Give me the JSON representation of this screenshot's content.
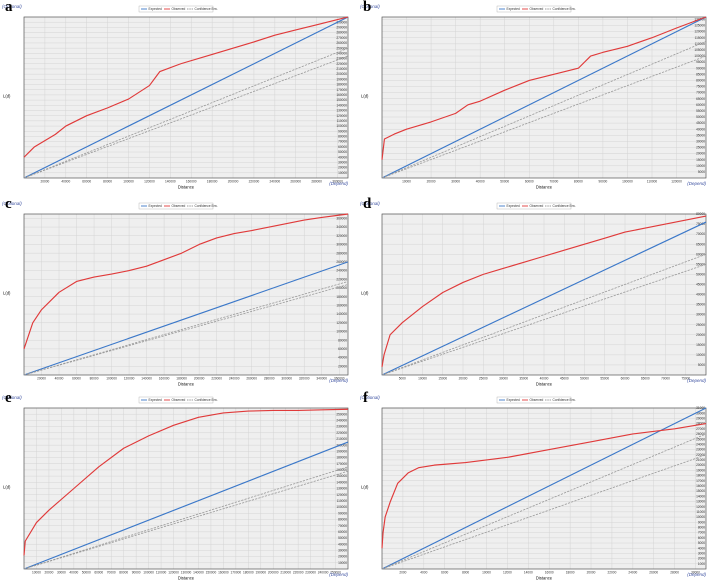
{
  "legend_labels": {
    "expected": "Expected",
    "observed": "Observed",
    "envelope": "Confidence Env."
  },
  "axis_labels": {
    "x": "Distance",
    "y": "L(d)"
  },
  "link_labels": {
    "optional": "(Optional)",
    "depend": "(Depend)"
  },
  "colors": {
    "expected": "#3b78c9",
    "observed": "#e03a3a",
    "envelope": "#999999",
    "plot_bg": "#efefef",
    "grid": "#d4d4d4"
  },
  "chart_data": [
    {
      "panel": "a",
      "type": "line",
      "grid": true,
      "legend_position": "top-center",
      "xlim": [
        0,
        310000
      ],
      "ylim": [
        0,
        310000
      ],
      "xticks": [
        20000,
        40000,
        60000,
        80000,
        100000,
        120000,
        140000,
        160000,
        180000,
        200000,
        220000,
        240000,
        260000,
        280000,
        300000
      ],
      "yticks": [
        10000,
        20000,
        30000,
        40000,
        50000,
        60000,
        70000,
        80000,
        90000,
        100000,
        110000,
        120000,
        130000,
        140000,
        150000,
        160000,
        170000,
        180000,
        190000,
        200000,
        210000,
        220000,
        230000,
        240000,
        250000,
        260000,
        270000,
        280000,
        290000,
        300000
      ],
      "series": [
        {
          "name": "Expected",
          "x": [
            0,
            310000
          ],
          "y": [
            0,
            310000
          ]
        },
        {
          "name": "Observed",
          "x": [
            0,
            10000,
            20000,
            30000,
            40000,
            60000,
            80000,
            100000,
            120000,
            130000,
            150000,
            180000,
            200000,
            220000,
            240000,
            260000,
            280000,
            300000,
            310000
          ],
          "y": [
            40000,
            60000,
            72000,
            84000,
            100000,
            120000,
            135000,
            152000,
            178000,
            205000,
            220000,
            238000,
            250000,
            262000,
            275000,
            285000,
            295000,
            305000,
            310000
          ]
        },
        {
          "name": "Confidence Env.",
          "x": [
            0,
            310000
          ],
          "y": [
            0,
            250000
          ]
        },
        {
          "name": "Confidence Env.",
          "x": [
            0,
            310000
          ],
          "y": [
            0,
            235000
          ]
        }
      ]
    },
    {
      "panel": "b",
      "type": "line",
      "grid": true,
      "legend_position": "top-center",
      "xlim": [
        0,
        132000
      ],
      "ylim": [
        0,
        132000
      ],
      "xticks": [
        10000,
        20000,
        30000,
        40000,
        50000,
        60000,
        70000,
        80000,
        90000,
        100000,
        110000,
        120000
      ],
      "yticks": [
        5000,
        10000,
        15000,
        20000,
        25000,
        30000,
        35000,
        40000,
        45000,
        50000,
        55000,
        60000,
        65000,
        70000,
        75000,
        80000,
        85000,
        90000,
        95000,
        100000,
        105000,
        110000,
        115000,
        120000,
        125000,
        130000
      ],
      "series": [
        {
          "name": "Expected",
          "x": [
            0,
            132000
          ],
          "y": [
            0,
            132000
          ]
        },
        {
          "name": "Observed",
          "x": [
            0,
            1000,
            5000,
            10000,
            20000,
            30000,
            35000,
            40000,
            50000,
            60000,
            70000,
            80000,
            85000,
            90000,
            100000,
            110000,
            120000,
            132000
          ],
          "y": [
            15000,
            32000,
            36000,
            40000,
            46000,
            53000,
            60000,
            63000,
            72000,
            80000,
            85000,
            90000,
            100000,
            103000,
            108000,
            115000,
            123000,
            132000
          ]
        },
        {
          "name": "Confidence Env.",
          "x": [
            0,
            132000
          ],
          "y": [
            0,
            112000
          ]
        },
        {
          "name": "Confidence Env.",
          "x": [
            0,
            132000
          ],
          "y": [
            0,
            100000
          ]
        }
      ]
    },
    {
      "panel": "c",
      "type": "line",
      "grid": true,
      "legend_position": "top-center",
      "xlim": [
        0,
        370000
      ],
      "ylim": [
        0,
        370000
      ],
      "xticks": [
        20000,
        40000,
        60000,
        80000,
        100000,
        120000,
        140000,
        160000,
        180000,
        200000,
        220000,
        240000,
        260000,
        280000,
        300000,
        320000,
        340000,
        360000
      ],
      "yticks": [
        20000,
        40000,
        60000,
        80000,
        100000,
        120000,
        140000,
        160000,
        180000,
        200000,
        220000,
        240000,
        260000,
        280000,
        300000,
        320000,
        340000,
        360000
      ],
      "series": [
        {
          "name": "Expected",
          "x": [
            0,
            370000
          ],
          "y": [
            0,
            260000
          ]
        },
        {
          "name": "Observed",
          "x": [
            0,
            10000,
            20000,
            40000,
            60000,
            80000,
            100000,
            120000,
            140000,
            160000,
            180000,
            200000,
            220000,
            240000,
            260000,
            280000,
            300000,
            320000,
            340000,
            370000
          ],
          "y": [
            60000,
            120000,
            150000,
            190000,
            215000,
            225000,
            232000,
            240000,
            250000,
            265000,
            280000,
            300000,
            315000,
            325000,
            332000,
            340000,
            348000,
            356000,
            362000,
            370000
          ]
        },
        {
          "name": "Confidence Env.",
          "x": [
            0,
            370000
          ],
          "y": [
            0,
            215000
          ]
        },
        {
          "name": "Confidence Env.",
          "x": [
            0,
            370000
          ],
          "y": [
            0,
            208000
          ]
        }
      ]
    },
    {
      "panel": "d",
      "type": "line",
      "grid": true,
      "legend_position": "top-center",
      "xlim": [
        0,
        80000
      ],
      "ylim": [
        0,
        80000
      ],
      "xticks": [
        5000,
        10000,
        15000,
        20000,
        25000,
        30000,
        35000,
        40000,
        45000,
        50000,
        55000,
        60000,
        65000,
        70000,
        75000
      ],
      "yticks": [
        5000,
        10000,
        15000,
        20000,
        25000,
        30000,
        35000,
        40000,
        45000,
        50000,
        55000,
        60000,
        65000,
        70000,
        75000,
        80000
      ],
      "series": [
        {
          "name": "Expected",
          "x": [
            0,
            80000
          ],
          "y": [
            0,
            76000
          ]
        },
        {
          "name": "Observed",
          "x": [
            0,
            500,
            2000,
            5000,
            10000,
            15000,
            20000,
            25000,
            30000,
            35000,
            40000,
            45000,
            50000,
            55000,
            60000,
            65000,
            70000,
            75000,
            80000
          ],
          "y": [
            4000,
            10000,
            20000,
            26000,
            34000,
            41000,
            46000,
            50000,
            53000,
            56000,
            59000,
            62000,
            65000,
            68000,
            71000,
            73000,
            75000,
            77000,
            79000
          ]
        },
        {
          "name": "Confidence Env.",
          "x": [
            0,
            80000
          ],
          "y": [
            0,
            60000
          ]
        },
        {
          "name": "Confidence Env.",
          "x": [
            0,
            80000
          ],
          "y": [
            0,
            55000
          ]
        }
      ]
    },
    {
      "panel": "e",
      "type": "line",
      "grid": true,
      "legend_position": "top-center",
      "xlim": [
        0,
        260000
      ],
      "ylim": [
        0,
        260000
      ],
      "xticks": [
        10000,
        20000,
        30000,
        40000,
        50000,
        60000,
        70000,
        80000,
        90000,
        100000,
        110000,
        120000,
        130000,
        140000,
        150000,
        160000,
        170000,
        180000,
        190000,
        200000,
        210000,
        220000,
        230000,
        240000,
        250000
      ],
      "yticks": [
        10000,
        20000,
        30000,
        40000,
        50000,
        60000,
        70000,
        80000,
        90000,
        100000,
        110000,
        120000,
        130000,
        140000,
        150000,
        160000,
        170000,
        180000,
        190000,
        200000,
        210000,
        220000,
        230000,
        240000,
        250000
      ],
      "series": [
        {
          "name": "Expected",
          "x": [
            0,
            260000
          ],
          "y": [
            0,
            205000
          ]
        },
        {
          "name": "Observed",
          "x": [
            0,
            1000,
            10000,
            20000,
            40000,
            60000,
            80000,
            100000,
            120000,
            140000,
            160000,
            180000,
            200000,
            220000,
            240000,
            260000
          ],
          "y": [
            22000,
            45000,
            75000,
            95000,
            130000,
            165000,
            195000,
            215000,
            232000,
            245000,
            252000,
            255000,
            256000,
            256000,
            257000,
            258000
          ]
        },
        {
          "name": "Confidence Env.",
          "x": [
            0,
            260000
          ],
          "y": [
            0,
            165000
          ]
        },
        {
          "name": "Confidence Env.",
          "x": [
            0,
            260000
          ],
          "y": [
            0,
            158000
          ]
        }
      ]
    },
    {
      "panel": "f",
      "type": "line",
      "grid": true,
      "legend_position": "top-center",
      "xlim": [
        0,
        31000
      ],
      "ylim": [
        0,
        31000
      ],
      "xticks": [
        2000,
        4000,
        6000,
        8000,
        10000,
        12000,
        14000,
        16000,
        18000,
        20000,
        22000,
        24000,
        26000,
        28000,
        30000
      ],
      "yticks": [
        1000,
        2000,
        3000,
        4000,
        5000,
        6000,
        7000,
        8000,
        9000,
        10000,
        11000,
        12000,
        13000,
        14000,
        15000,
        16000,
        17000,
        18000,
        19000,
        20000,
        21000,
        22000,
        23000,
        24000,
        25000,
        26000,
        27000,
        28000,
        29000,
        30000,
        31000
      ],
      "series": [
        {
          "name": "Expected",
          "x": [
            0,
            31000
          ],
          "y": [
            0,
            31000
          ]
        },
        {
          "name": "Observed",
          "x": [
            0,
            100,
            300,
            800,
            1500,
            2500,
            3500,
            5000,
            8000,
            12000,
            16000,
            20000,
            24000,
            28000,
            31000
          ],
          "y": [
            4000,
            7000,
            10000,
            13000,
            16500,
            18500,
            19500,
            20000,
            20500,
            21500,
            23000,
            24500,
            26000,
            27000,
            28000
          ]
        },
        {
          "name": "Confidence Env.",
          "x": [
            0,
            31000
          ],
          "y": [
            0,
            26000
          ]
        },
        {
          "name": "Confidence Env.",
          "x": [
            0,
            31000
          ],
          "y": [
            0,
            22000
          ]
        }
      ]
    }
  ]
}
